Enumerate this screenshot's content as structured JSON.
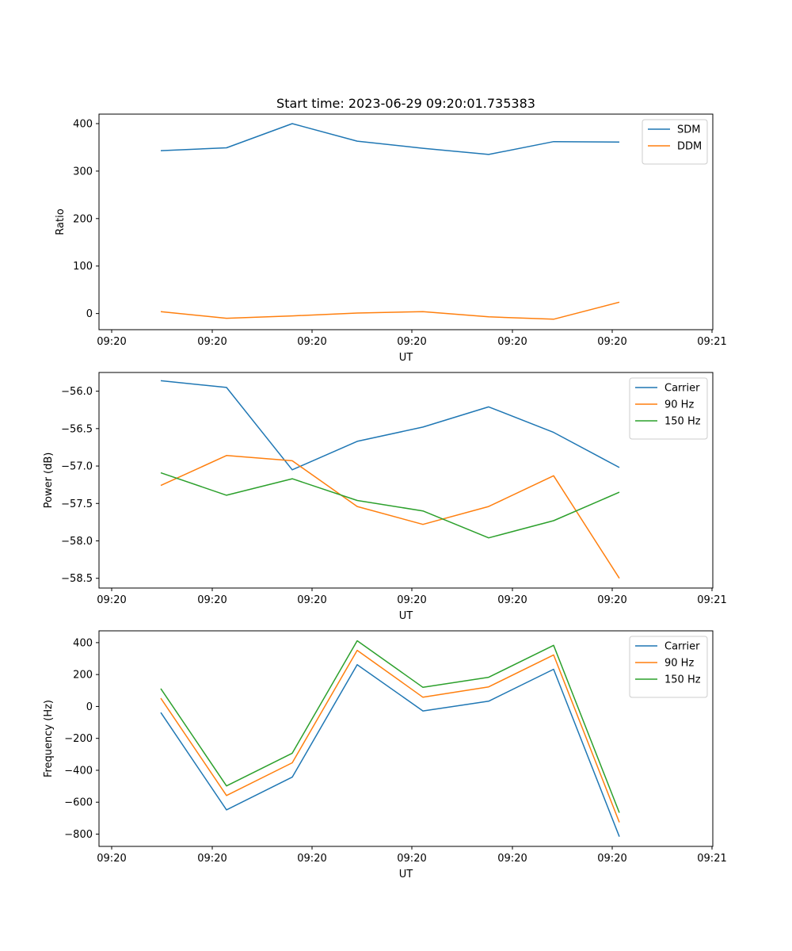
{
  "title": "Start time: 2023-06-29 09:20:01.735383",
  "chart_data": [
    {
      "type": "line",
      "xlabel": "UT",
      "ylabel": "Ratio",
      "x_tick_labels": [
        "09:20",
        "09:20",
        "09:20",
        "09:20",
        "09:20",
        "09:20",
        "09:21"
      ],
      "y_ticks": [
        0,
        100,
        200,
        300,
        400
      ],
      "y_tick_labels": [
        "0",
        "100",
        "200",
        "300",
        "400"
      ],
      "ylim": [
        -34,
        420
      ],
      "legend_position": "top-right",
      "series": [
        {
          "name": "SDM",
          "color": "#1f77b4",
          "values": [
            343,
            349,
            400,
            363,
            348,
            335,
            362,
            361
          ]
        },
        {
          "name": "DDM",
          "color": "#ff7f0e",
          "values": [
            4,
            -10,
            -5,
            1,
            4,
            -7,
            -12,
            24
          ]
        }
      ]
    },
    {
      "type": "line",
      "xlabel": "UT",
      "ylabel": "Power (dB)",
      "x_tick_labels": [
        "09:20",
        "09:20",
        "09:20",
        "09:20",
        "09:20",
        "09:20",
        "09:21"
      ],
      "y_ticks": [
        -56.0,
        -56.5,
        -57.0,
        -57.5,
        -58.0,
        -58.5
      ],
      "y_tick_labels": [
        "−56.0",
        "−56.5",
        "−57.0",
        "−57.5",
        "−58.0",
        "−58.5"
      ],
      "ylim": [
        -58.63,
        -55.75
      ],
      "legend_position": "top-right",
      "series": [
        {
          "name": "Carrier",
          "color": "#1f77b4",
          "values": [
            -55.86,
            -55.95,
            -57.05,
            -56.67,
            -56.48,
            -56.21,
            -56.55,
            -57.02
          ]
        },
        {
          "name": "90 Hz",
          "color": "#ff7f0e",
          "values": [
            -57.26,
            -56.86,
            -56.93,
            -57.54,
            -57.78,
            -57.54,
            -57.13,
            -58.5
          ]
        },
        {
          "name": "150 Hz",
          "color": "#2ca02c",
          "values": [
            -57.09,
            -57.39,
            -57.17,
            -57.46,
            -57.6,
            -57.96,
            -57.73,
            -57.35
          ]
        }
      ]
    },
    {
      "type": "line",
      "xlabel": "UT",
      "ylabel": "Frequency (Hz)",
      "x_tick_labels": [
        "09:20",
        "09:20",
        "09:20",
        "09:20",
        "09:20",
        "09:20",
        "09:21"
      ],
      "y_ticks": [
        400,
        200,
        0,
        -200,
        -400,
        -600,
        -800
      ],
      "y_tick_labels": [
        "400",
        "200",
        "0",
        "−200",
        "−400",
        "−600",
        "−800"
      ],
      "ylim": [
        -877,
        474
      ],
      "legend_position": "top-right",
      "series": [
        {
          "name": "Carrier",
          "color": "#1f77b4",
          "values": [
            -38,
            -648,
            -443,
            262,
            -28,
            33,
            233,
            -816
          ]
        },
        {
          "name": "90 Hz",
          "color": "#ff7f0e",
          "values": [
            52,
            -558,
            -353,
            352,
            58,
            123,
            323,
            -726
          ]
        },
        {
          "name": "150 Hz",
          "color": "#2ca02c",
          "values": [
            112,
            -498,
            -293,
            412,
            120,
            183,
            383,
            -666
          ]
        }
      ]
    }
  ]
}
